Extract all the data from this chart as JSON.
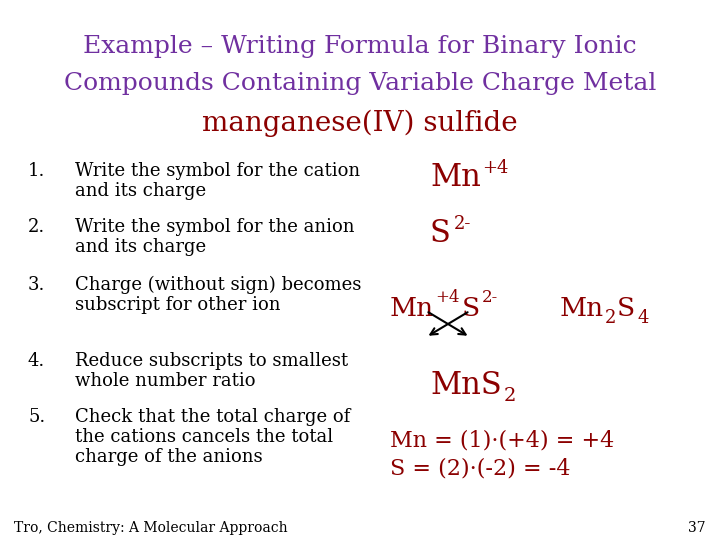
{
  "background_color": "#ffffff",
  "title_line1": "Example – Writing Formula for Binary Ionic",
  "title_line2": "Compounds Containing Variable Charge Metal",
  "title_line3": "manganese(IV) sulfide",
  "title_color": "#7030a0",
  "title_line3_color": "#cc0000",
  "title_fontsize": 18,
  "title_line3_fontsize": 20,
  "step_color": "#000000",
  "step_fontsize": 13,
  "red_color": "#8b0000",
  "footnote": "Tro, Chemistry: A Molecular Approach",
  "footnote_page": "37",
  "footnote_fontsize": 10
}
